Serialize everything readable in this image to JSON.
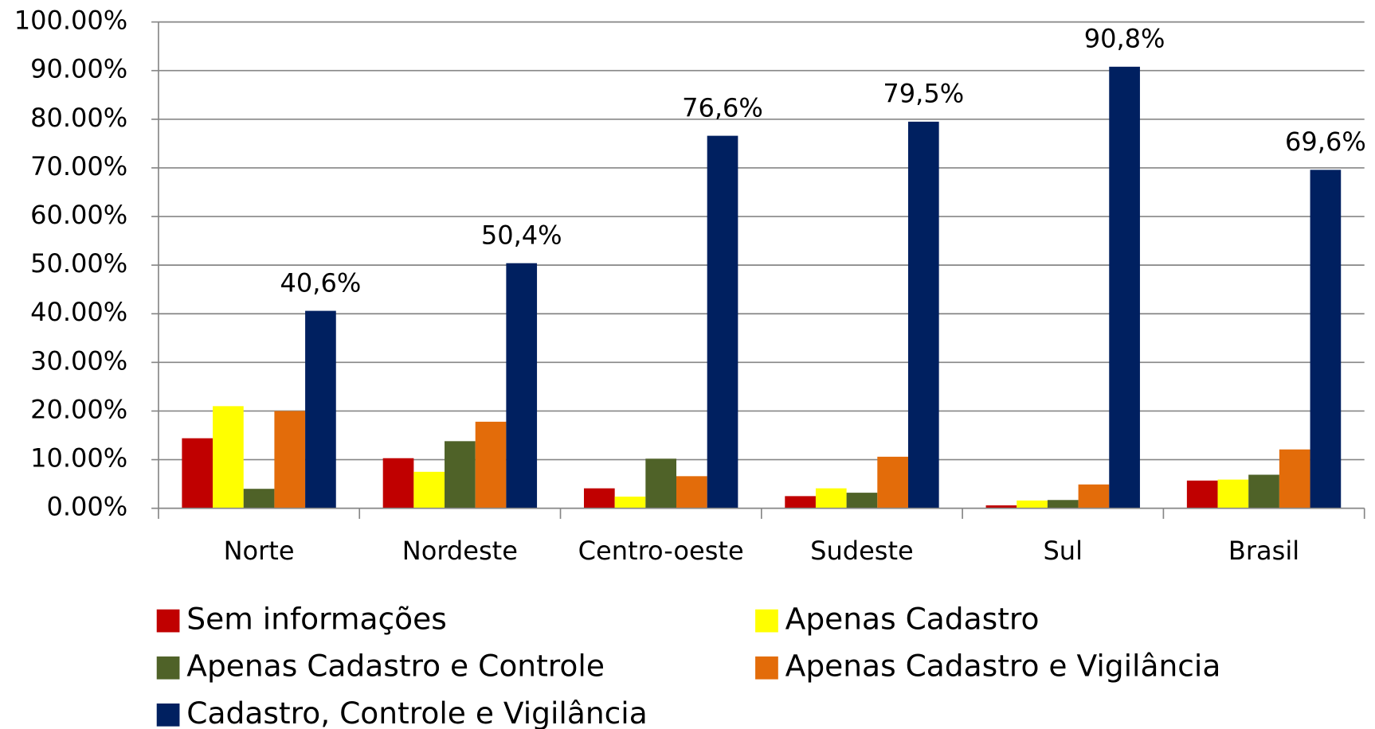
{
  "chart_data": {
    "type": "bar",
    "categories": [
      "Norte",
      "Nordeste",
      "Centro-oeste",
      "Sudeste",
      "Sul",
      "Brasil"
    ],
    "series": [
      {
        "name": "Sem informações",
        "color": "#c00000",
        "values": [
          14.4,
          10.3,
          4.1,
          2.5,
          0.6,
          5.7
        ]
      },
      {
        "name": "Apenas Cadastro",
        "color": "#ffff00",
        "values": [
          21,
          7.5,
          2.4,
          4.1,
          1.6,
          5.9
        ]
      },
      {
        "name": "Apenas Cadastro e Controle",
        "color": "#4f6228",
        "values": [
          4,
          13.8,
          10.2,
          3.2,
          1.7,
          6.9
        ]
      },
      {
        "name": "Apenas Cadastro e Vigilância",
        "color": "#e36c0a",
        "values": [
          20,
          17.8,
          6.6,
          10.6,
          4.9,
          12.1
        ]
      },
      {
        "name": "Cadastro, Controle e Vigilância",
        "color": "#002060",
        "values": [
          40.6,
          50.4,
          76.6,
          79.5,
          90.8,
          69.6
        ],
        "value_labels": [
          "40,6%",
          "50,4%",
          "76,6%",
          "79,5%",
          "90,8%",
          "69,6%"
        ]
      }
    ],
    "ylim": [
      0,
      100
    ],
    "yticks": [
      {
        "value": 0,
        "label": "0.00%"
      },
      {
        "value": 10,
        "label": "10.00%"
      },
      {
        "value": 20,
        "label": "20.00%"
      },
      {
        "value": 30,
        "label": "30.00%"
      },
      {
        "value": 40,
        "label": "40.00%"
      },
      {
        "value": 50,
        "label": "50.00%"
      },
      {
        "value": 60,
        "label": "60.00%"
      },
      {
        "value": 70,
        "label": "70.00%"
      },
      {
        "value": 80,
        "label": "80.00%"
      },
      {
        "value": 90,
        "label": "90.00%"
      },
      {
        "value": 100,
        "label": "100.00%"
      }
    ],
    "grid": true
  }
}
